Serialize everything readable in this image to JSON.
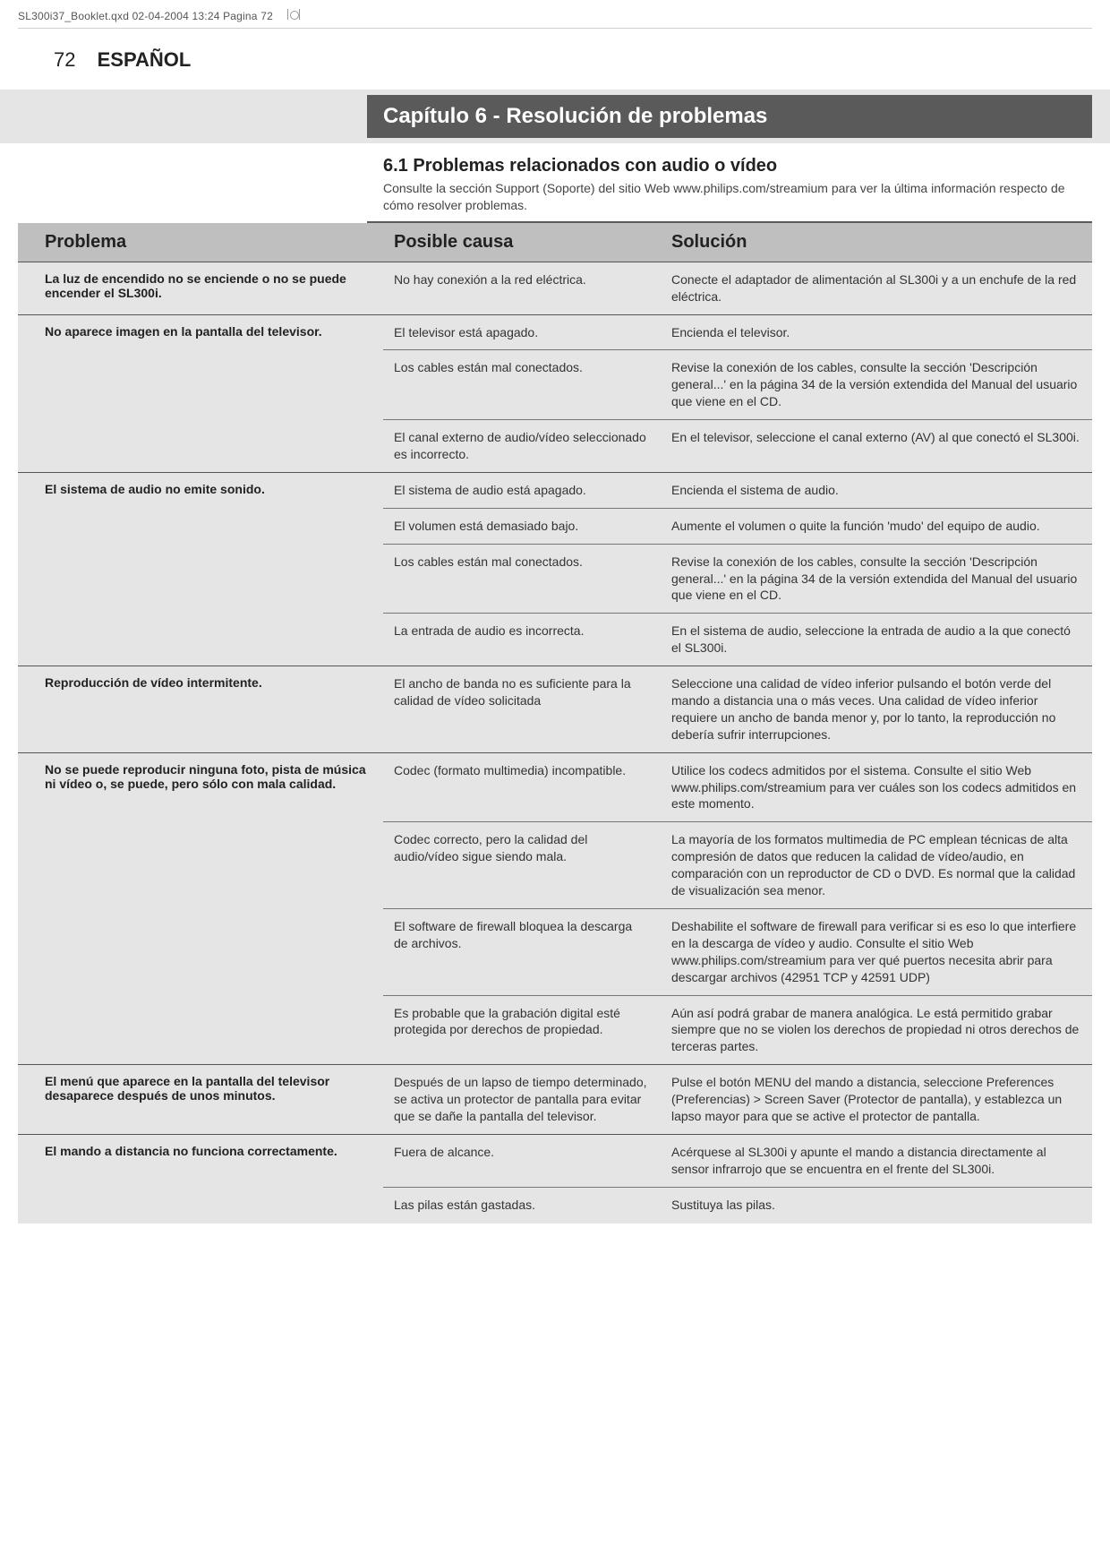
{
  "header": {
    "fileline": "SL300i37_Booklet.qxd  02-04-2004  13:24  Pagina 72"
  },
  "page": {
    "number": "72",
    "language": "ESPAÑOL"
  },
  "chapter": {
    "title": "Capítulo 6 - Resolución de problemas"
  },
  "section": {
    "title": "6.1 Problemas relacionados con audio o vídeo",
    "intro": "Consulte la sección Support (Soporte) del sitio Web www.philips.com/streamium para ver la última información respecto de cómo resolver problemas."
  },
  "table": {
    "headers": {
      "col1": "Problema",
      "col2": "Posible causa",
      "col3": "Solución"
    },
    "rows": [
      {
        "problem": "La luz de encendido no se enciende o no se puede encender el SL300i.",
        "items": [
          {
            "cause": "No hay conexión a la red eléctrica.",
            "solution": "Conecte el adaptador de alimentación al SL300i y a un enchufe de la red eléctrica."
          }
        ]
      },
      {
        "problem": "No aparece imagen en la pantalla del televisor.",
        "items": [
          {
            "cause": "El televisor está apagado.",
            "solution": "Encienda el televisor."
          },
          {
            "cause": "Los cables están mal conectados.",
            "solution": "Revise la conexión de los cables, consulte la sección 'Descripción general...' en la página 34 de la versión extendida del Manual del usuario que viene en el CD."
          },
          {
            "cause": "El canal externo de audio/vídeo seleccionado es incorrecto.",
            "solution": "En el televisor, seleccione el canal externo (AV) al que conectó el SL300i."
          }
        ]
      },
      {
        "problem": "El sistema de audio no emite sonido.",
        "items": [
          {
            "cause": "El sistema de audio está apagado.",
            "solution": "Encienda el sistema de audio."
          },
          {
            "cause": "El volumen está demasiado bajo.",
            "solution": "Aumente el volumen o quite la función 'mudo' del equipo de audio."
          },
          {
            "cause": "Los cables están mal conectados.",
            "solution": "Revise la conexión de los cables, consulte la sección 'Descripción general...' en la página 34 de la versión extendida del Manual del usuario que viene en el CD."
          },
          {
            "cause": "La entrada de audio es incorrecta.",
            "solution": "En el sistema de audio, seleccione la entrada de audio a la que conectó el SL300i."
          }
        ]
      },
      {
        "problem": "Reproducción de vídeo intermitente.",
        "items": [
          {
            "cause": "El ancho de banda no es suficiente para la calidad de vídeo solicitada",
            "solution": "Seleccione una calidad de vídeo inferior pulsando el botón verde del mando a distancia una o más veces. Una calidad de vídeo inferior requiere un ancho de banda menor y, por lo tanto, la reproducción no debería sufrir interrupciones."
          }
        ]
      },
      {
        "problem": "No se puede reproducir ninguna foto, pista de música ni vídeo o, se puede, pero sólo con mala calidad.",
        "items": [
          {
            "cause": "Codec (formato multimedia) incompatible.",
            "solution": "Utilice los codecs admitidos por el sistema. Consulte el sitio Web www.philips.com/streamium para ver cuáles son los codecs admitidos en este momento."
          },
          {
            "cause": "Codec correcto, pero la calidad del audio/vídeo sigue siendo mala.",
            "solution": "La mayoría de los formatos multimedia de PC emplean técnicas de alta compresión de datos que reducen la calidad de vídeo/audio, en comparación con un reproductor de CD o DVD. Es normal que la calidad de visualización sea menor."
          },
          {
            "cause": "El software de firewall bloquea la descarga de archivos.",
            "solution": "Deshabilite el software de firewall para verificar si es eso lo que interfiere en la descarga de vídeo y audio. Consulte el sitio Web www.philips.com/streamium para ver qué puertos necesita abrir para descargar archivos (42951 TCP y 42591 UDP)"
          },
          {
            "cause": "Es probable que la grabación digital esté protegida por derechos de propiedad.",
            "solution": "Aún así podrá grabar de manera analógica. Le está permitido grabar siempre que no se violen los derechos de propiedad ni otros derechos de terceras partes."
          }
        ]
      },
      {
        "problem": "El menú que aparece en la pantalla del televisor desaparece después de unos minutos.",
        "items": [
          {
            "cause": "Después de un lapso de tiempo determinado, se activa un protector de pantalla para evitar que se dañe la pantalla del televisor.",
            "solution": "Pulse el botón MENU del mando a distancia, seleccione Preferences (Preferencias) > Screen Saver (Protector de pantalla), y establezca un lapso mayor para que se active el protector de pantalla."
          }
        ]
      },
      {
        "problem": "El mando a distancia no funciona correctamente.",
        "items": [
          {
            "cause": "Fuera de alcance.",
            "solution": "Acérquese al SL300i y apunte el mando a distancia directamente al sensor infrarrojo que se encuentra en el frente del SL300i."
          },
          {
            "cause": "Las pilas están gastadas.",
            "solution": "Sustituya las pilas."
          }
        ]
      }
    ]
  },
  "colors": {
    "chapter_bg": "#5a5a5a",
    "chapter_fg": "#ffffff",
    "header_row_bg": "#bfbfbf",
    "body_bg": "#e5e5e5",
    "rule": "#555555"
  }
}
